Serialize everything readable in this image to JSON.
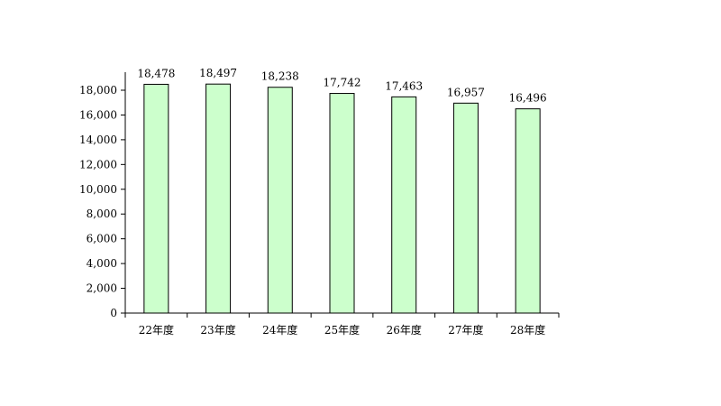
{
  "chart_data": {
    "type": "bar",
    "categories": [
      "22年度",
      "23年度",
      "24年度",
      "25年度",
      "26年度",
      "27年度",
      "28年度"
    ],
    "values": [
      18478,
      18497,
      18238,
      17742,
      17463,
      16957,
      16496
    ],
    "value_labels": [
      "18,478",
      "18,497",
      "18,238",
      "17,742",
      "17,463",
      "16,957",
      "16,496"
    ],
    "y_ticks": [
      "0",
      "2,000",
      "4,000",
      "6,000",
      "8,000",
      "10,000",
      "12,000",
      "14,000",
      "16,000",
      "18,000"
    ],
    "ylim": [
      0,
      18000
    ],
    "grid": false,
    "legend": "none",
    "colors": {
      "bar_fill": "#ccffcc",
      "bar_stroke": "#000000",
      "axis": "#000000"
    }
  }
}
